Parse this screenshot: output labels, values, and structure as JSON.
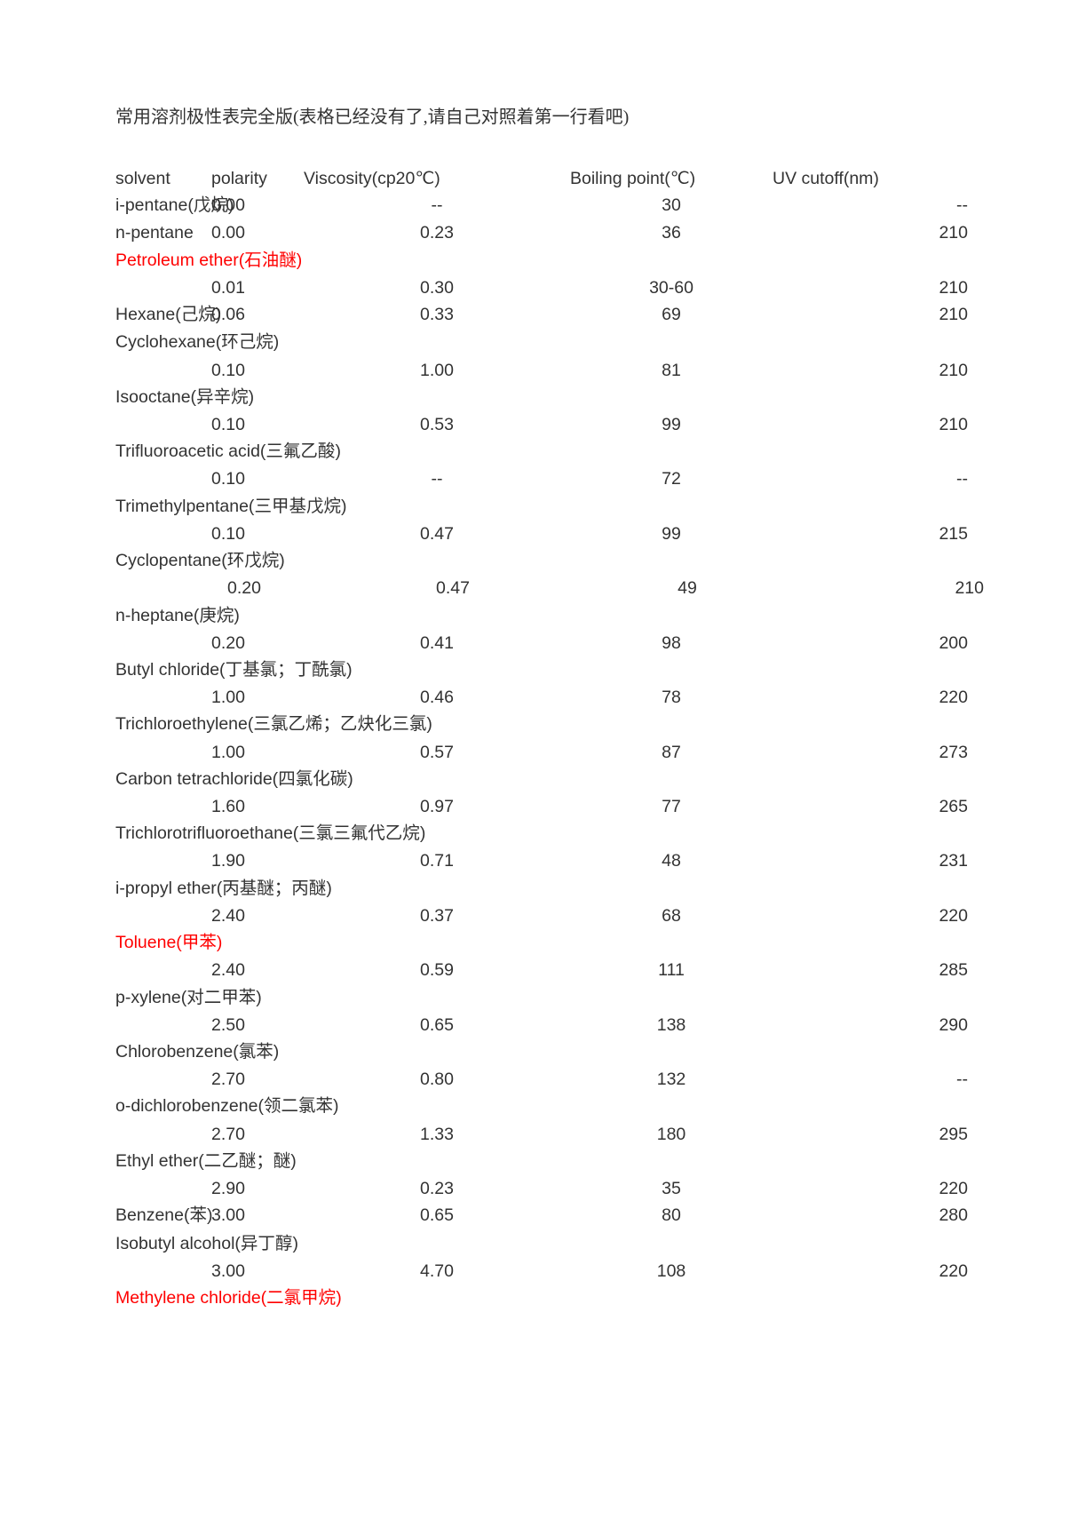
{
  "title_prefix": "常用溶剂极性表完全版(表格已经没有了,请自己对照着第一行看吧)",
  "headers": {
    "solvent": "solvent",
    "polarity": "polarity",
    "viscosity": "Viscosity(cp20℃)",
    "bp": "Boiling point(℃)",
    "uv": "UV cutoff(nm)"
  },
  "rows": [
    {
      "type": "data",
      "solvent": "i-pentane(戊烷)",
      "polarity": "0.00",
      "viscosity": "--",
      "bp": "30",
      "uv": "--"
    },
    {
      "type": "data",
      "solvent": "n-pentane",
      "polarity": "0.00",
      "viscosity": "0.23",
      "bp": "36",
      "uv": "210"
    },
    {
      "type": "name",
      "solvent": "Petroleum ether(石油醚)",
      "red": true
    },
    {
      "type": "data",
      "solvent": "",
      "polarity": "0.01",
      "viscosity": "0.30",
      "bp": "30-60",
      "uv": "210"
    },
    {
      "type": "data",
      "solvent": "Hexane(己烷)",
      "polarity": "0.06",
      "viscosity": "0.33",
      "bp": "69",
      "uv": "210"
    },
    {
      "type": "name",
      "solvent": "Cyclohexane(环己烷)"
    },
    {
      "type": "data",
      "solvent": "",
      "polarity": "0.10",
      "viscosity": "1.00",
      "bp": "81",
      "uv": "210"
    },
    {
      "type": "name",
      "solvent": "Isooctane(异辛烷)"
    },
    {
      "type": "data",
      "solvent": "",
      "polarity": "0.10",
      "viscosity": "0.53",
      "bp": "99",
      "uv": "210"
    },
    {
      "type": "name",
      "solvent": "Trifluoroacetic acid(三氟乙酸)"
    },
    {
      "type": "data",
      "solvent": "",
      "polarity": "0.10",
      "viscosity": "--",
      "bp": "72",
      "uv": "--"
    },
    {
      "type": "name",
      "solvent": "Trimethylpentane(三甲基戊烷)"
    },
    {
      "type": "data",
      "solvent": "",
      "polarity": "0.10",
      "viscosity": "0.47",
      "bp": "99",
      "uv": "215"
    },
    {
      "type": "name",
      "solvent": "Cyclopentane(环戊烷)"
    },
    {
      "type": "data",
      "solvent": "",
      "polarity": "0.20",
      "viscosity": "0.47",
      "bp": "49",
      "uv": "210",
      "pad": true
    },
    {
      "type": "name",
      "solvent": "n-heptane(庚烷)"
    },
    {
      "type": "data",
      "solvent": "",
      "polarity": "0.20",
      "viscosity": "0.41",
      "bp": "98",
      "uv": "200"
    },
    {
      "type": "name",
      "solvent": "Butyl chloride(丁基氯；丁酰氯)"
    },
    {
      "type": "data",
      "solvent": "",
      "polarity": "1.00",
      "viscosity": "0.46",
      "bp": "78",
      "uv": "220"
    },
    {
      "type": "name",
      "solvent": "Trichloroethylene(三氯乙烯；乙炔化三氯)"
    },
    {
      "type": "data",
      "solvent": "",
      "polarity": "1.00",
      "viscosity": "0.57",
      "bp": "87",
      "uv": "273"
    },
    {
      "type": "name",
      "solvent": "Carbon tetrachloride(四氯化碳)"
    },
    {
      "type": "data",
      "solvent": "",
      "polarity": "1.60",
      "viscosity": "0.97",
      "bp": "77",
      "uv": "265"
    },
    {
      "type": "name",
      "solvent": "Trichlorotrifluoroethane(三氯三氟代乙烷)"
    },
    {
      "type": "data",
      "solvent": "",
      "polarity": "1.90",
      "viscosity": "0.71",
      "bp": "48",
      "uv": "231"
    },
    {
      "type": "name",
      "solvent": "i-propyl ether(丙基醚；丙醚)"
    },
    {
      "type": "data",
      "solvent": "",
      "polarity": "2.40",
      "viscosity": "0.37",
      "bp": "68",
      "uv": "220"
    },
    {
      "type": "name",
      "solvent": "Toluene(甲苯)",
      "red": true
    },
    {
      "type": "data",
      "solvent": "",
      "polarity": "2.40",
      "viscosity": "0.59",
      "bp": "111",
      "uv": "285"
    },
    {
      "type": "name",
      "solvent": "p-xylene(对二甲苯)"
    },
    {
      "type": "data",
      "solvent": "",
      "polarity": "2.50",
      "viscosity": "0.65",
      "bp": "138",
      "uv": "290"
    },
    {
      "type": "name",
      "solvent": "Chlorobenzene(氯苯)"
    },
    {
      "type": "data",
      "solvent": "",
      "polarity": "2.70",
      "viscosity": "0.80",
      "bp": "132",
      "uv": "--"
    },
    {
      "type": "name",
      "solvent": "o-dichlorobenzene(领二氯苯)"
    },
    {
      "type": "data",
      "solvent": "",
      "polarity": "2.70",
      "viscosity": "1.33",
      "bp": "180",
      "uv": "295"
    },
    {
      "type": "name",
      "solvent": "Ethyl ether(二乙醚；醚)"
    },
    {
      "type": "data",
      "solvent": "",
      "polarity": "2.90",
      "viscosity": "0.23",
      "bp": "35",
      "uv": "220"
    },
    {
      "type": "data",
      "solvent": "Benzene(苯)",
      "polarity": "3.00",
      "viscosity": "0.65",
      "bp": "80",
      "uv": "280"
    },
    {
      "type": "name",
      "solvent": "Isobutyl alcohol(异丁醇)"
    },
    {
      "type": "data",
      "solvent": "",
      "polarity": "3.00",
      "viscosity": "4.70",
      "bp": "108",
      "uv": "220"
    },
    {
      "type": "name",
      "solvent": "Methylene chloride(二氯甲烷)",
      "red": true
    }
  ]
}
